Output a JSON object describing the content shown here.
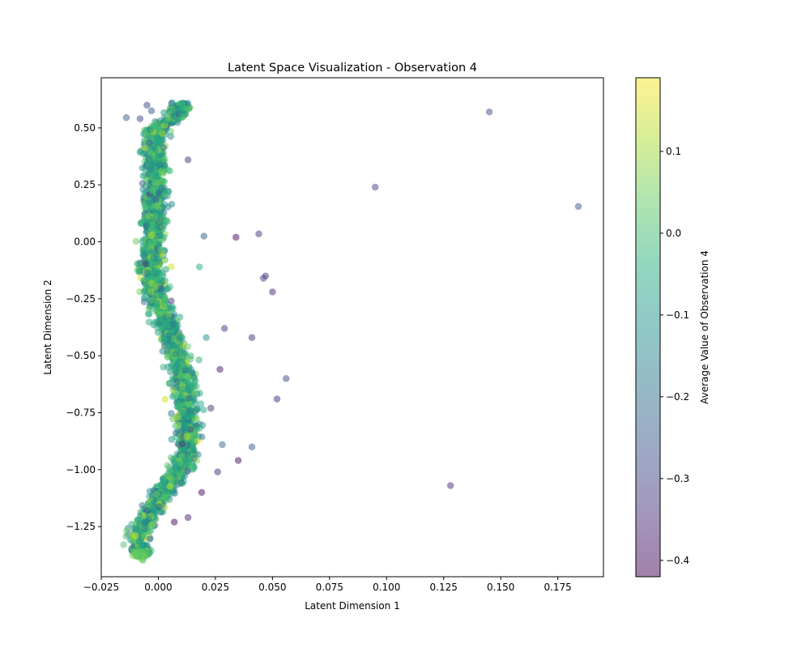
{
  "chart_data": {
    "type": "scatter",
    "title": "Latent Space Visualization - Observation 4",
    "xlabel": "Latent Dimension 1",
    "ylabel": "Latent Dimension 2",
    "xlim": [
      -0.025,
      0.195
    ],
    "ylim": [
      -1.47,
      0.72
    ],
    "xticks": [
      -0.025,
      0.0,
      0.025,
      0.05,
      0.075,
      0.1,
      0.125,
      0.15,
      0.175
    ],
    "xtick_labels": [
      "−0.025",
      "0.000",
      "0.025",
      "0.050",
      "0.075",
      "0.100",
      "0.125",
      "0.150",
      "0.175"
    ],
    "yticks": [
      0.5,
      0.25,
      0.0,
      -0.25,
      -0.5,
      -0.75,
      -1.0,
      -1.25
    ],
    "ytick_labels": [
      "0.50",
      "0.25",
      "0.00",
      "−0.25",
      "−0.50",
      "−0.75",
      "−1.00",
      "−1.25"
    ],
    "grid": false,
    "colormap": "viridis",
    "marker_alpha": 0.5,
    "colorbar": {
      "label": "Average Value of Observation 4",
      "range": [
        -0.42,
        0.19
      ],
      "ticks": [
        0.1,
        0.0,
        -0.1,
        -0.2,
        -0.3,
        -0.4
      ],
      "tick_labels": [
        "0.1",
        "0.0",
        "−0.1",
        "−0.2",
        "−0.3",
        "−0.4"
      ]
    },
    "band_centerline": [
      {
        "y": 0.61,
        "x": 0.01
      },
      {
        "y": 0.55,
        "x": 0.008
      },
      {
        "y": 0.5,
        "x": 0.0
      },
      {
        "y": 0.4,
        "x": -0.002
      },
      {
        "y": 0.25,
        "x": -0.001
      },
      {
        "y": 0.1,
        "x": -0.002
      },
      {
        "y": 0.0,
        "x": -0.003
      },
      {
        "y": -0.15,
        "x": -0.003
      },
      {
        "y": -0.3,
        "x": 0.001
      },
      {
        "y": -0.45,
        "x": 0.007
      },
      {
        "y": -0.6,
        "x": 0.011
      },
      {
        "y": -0.75,
        "x": 0.013
      },
      {
        "y": -0.9,
        "x": 0.013
      },
      {
        "y": -1.0,
        "x": 0.009
      },
      {
        "y": -1.1,
        "x": 0.002
      },
      {
        "y": -1.2,
        "x": -0.004
      },
      {
        "y": -1.3,
        "x": -0.009
      },
      {
        "y": -1.37,
        "x": -0.008
      }
    ],
    "band_points_estimate": 2600,
    "outliers": [
      {
        "x": 0.145,
        "y": 0.57,
        "c": -0.28
      },
      {
        "x": 0.184,
        "y": 0.155,
        "c": -0.25
      },
      {
        "x": 0.095,
        "y": 0.24,
        "c": -0.3
      },
      {
        "x": 0.128,
        "y": -1.07,
        "c": -0.35
      },
      {
        "x": 0.034,
        "y": 0.02,
        "c": -0.4
      },
      {
        "x": 0.044,
        "y": 0.035,
        "c": -0.32
      },
      {
        "x": 0.047,
        "y": -0.15,
        "c": -0.33
      },
      {
        "x": 0.046,
        "y": -0.16,
        "c": -0.3
      },
      {
        "x": 0.05,
        "y": -0.22,
        "c": -0.36
      },
      {
        "x": 0.029,
        "y": -0.38,
        "c": -0.32
      },
      {
        "x": 0.041,
        "y": -0.42,
        "c": -0.34
      },
      {
        "x": 0.056,
        "y": -0.6,
        "c": -0.28
      },
      {
        "x": 0.052,
        "y": -0.69,
        "c": -0.35
      },
      {
        "x": 0.027,
        "y": -0.56,
        "c": -0.38
      },
      {
        "x": 0.023,
        "y": -0.73,
        "c": -0.33
      },
      {
        "x": 0.028,
        "y": -0.89,
        "c": -0.22
      },
      {
        "x": 0.041,
        "y": -0.9,
        "c": -0.25
      },
      {
        "x": 0.035,
        "y": -0.96,
        "c": -0.4
      },
      {
        "x": 0.026,
        "y": -1.01,
        "c": -0.35
      },
      {
        "x": 0.019,
        "y": -1.1,
        "c": -0.4
      },
      {
        "x": 0.013,
        "y": -1.21,
        "c": -0.36
      },
      {
        "x": 0.007,
        "y": -1.23,
        "c": -0.4
      },
      {
        "x": -0.014,
        "y": 0.545,
        "c": -0.25
      },
      {
        "x": -0.008,
        "y": 0.54,
        "c": -0.3
      },
      {
        "x": -0.005,
        "y": 0.6,
        "c": -0.28
      },
      {
        "x": -0.003,
        "y": 0.575,
        "c": -0.26
      },
      {
        "x": 0.013,
        "y": 0.36,
        "c": -0.33
      },
      {
        "x": 0.02,
        "y": 0.025,
        "c": -0.25
      },
      {
        "x": 0.018,
        "y": -0.11,
        "c": -0.05
      },
      {
        "x": 0.021,
        "y": -0.42,
        "c": -0.12
      }
    ]
  }
}
